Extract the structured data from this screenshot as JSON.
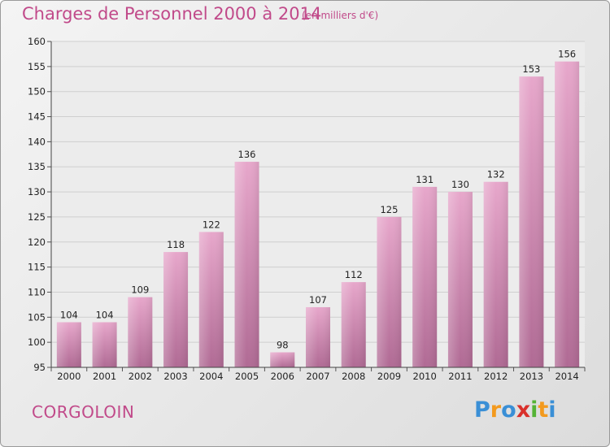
{
  "chart_data": {
    "type": "bar",
    "title": "Charges de Personnel 2000 à 2014",
    "subtitle": "(en milliers d'€)",
    "categories": [
      "2000",
      "2001",
      "2002",
      "2003",
      "2004",
      "2005",
      "2006",
      "2007",
      "2008",
      "2009",
      "2010",
      "2011",
      "2012",
      "2013",
      "2014"
    ],
    "values": [
      104,
      104,
      109,
      118,
      122,
      136,
      98,
      107,
      112,
      125,
      131,
      130,
      132,
      153,
      156
    ],
    "ylim": [
      95,
      160
    ],
    "yticks": [
      95,
      100,
      105,
      110,
      115,
      120,
      125,
      130,
      135,
      140,
      145,
      150,
      155,
      160
    ],
    "grid": true,
    "bar_color": "#d986b4"
  },
  "commune": "CORGOLOIN",
  "logo": {
    "letters": [
      "P",
      "r",
      "o",
      "x",
      "i",
      "t",
      "i"
    ],
    "colors": [
      "#3a8fd6",
      "#f39a1e",
      "#3a8fd6",
      "#d9302b",
      "#55b336",
      "#f39a1e",
      "#3a8fd6"
    ]
  }
}
